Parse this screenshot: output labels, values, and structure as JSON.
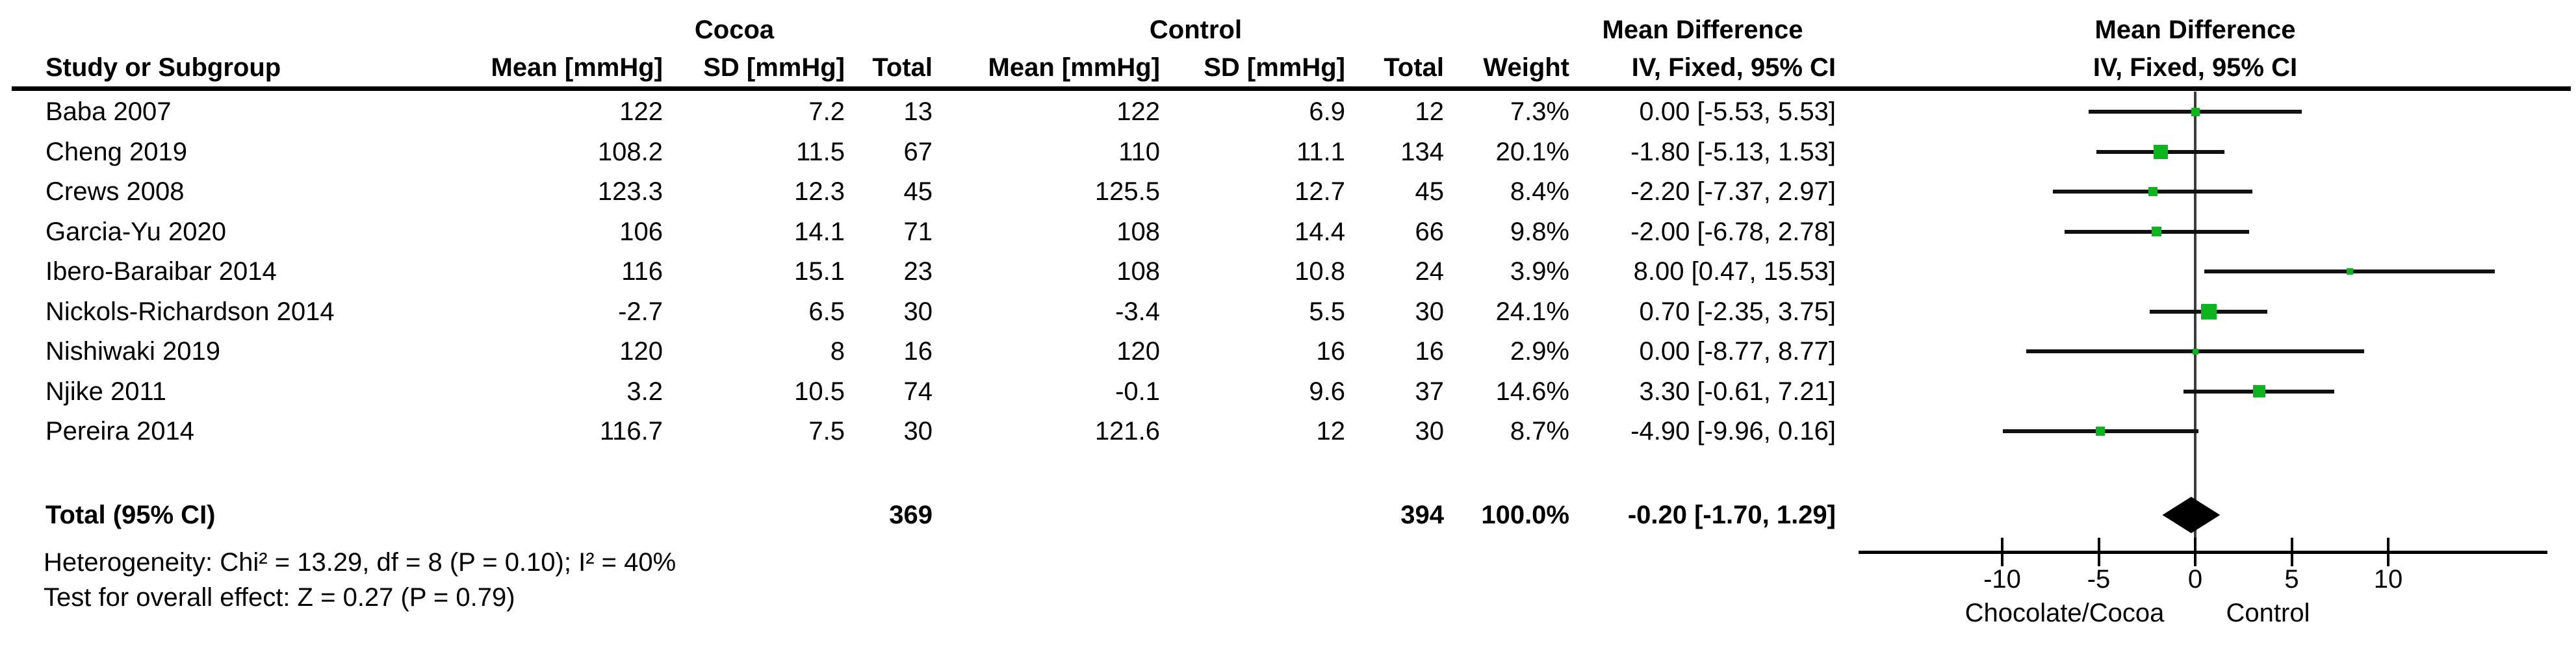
{
  "chart_data": {
    "type": "scatter",
    "subtype": "forest-plot-fixed-effect-mean-difference",
    "groups": {
      "g1": "Cocoa",
      "g2": "Control"
    },
    "columns": {
      "study": "Study or Subgroup",
      "mean": "Mean [mmHg]",
      "sd": "SD [mmHg]",
      "total": "Total",
      "weight": "Weight",
      "ci": "IV, Fixed, 95% CI"
    },
    "md_header": "Mean Difference",
    "studies": [
      {
        "name": "Baba 2007",
        "cocoa": {
          "mean": "122",
          "sd": "7.2",
          "total": "13"
        },
        "control": {
          "mean": "122",
          "sd": "6.9",
          "total": "12"
        },
        "weight": "7.3%",
        "weight_pct": 7.3,
        "ci_label": "0.00 [-5.53, 5.53]",
        "md": 0.0,
        "ci_low": -5.53,
        "ci_high": 5.53
      },
      {
        "name": "Cheng 2019",
        "cocoa": {
          "mean": "108.2",
          "sd": "11.5",
          "total": "67"
        },
        "control": {
          "mean": "110",
          "sd": "11.1",
          "total": "134"
        },
        "weight": "20.1%",
        "weight_pct": 20.1,
        "ci_label": "-1.80 [-5.13, 1.53]",
        "md": -1.8,
        "ci_low": -5.13,
        "ci_high": 1.53
      },
      {
        "name": "Crews 2008",
        "cocoa": {
          "mean": "123.3",
          "sd": "12.3",
          "total": "45"
        },
        "control": {
          "mean": "125.5",
          "sd": "12.7",
          "total": "45"
        },
        "weight": "8.4%",
        "weight_pct": 8.4,
        "ci_label": "-2.20 [-7.37, 2.97]",
        "md": -2.2,
        "ci_low": -7.37,
        "ci_high": 2.97
      },
      {
        "name": "Garcia-Yu 2020",
        "cocoa": {
          "mean": "106",
          "sd": "14.1",
          "total": "71"
        },
        "control": {
          "mean": "108",
          "sd": "14.4",
          "total": "66"
        },
        "weight": "9.8%",
        "weight_pct": 9.8,
        "ci_label": "-2.00 [-6.78, 2.78]",
        "md": -2.0,
        "ci_low": -6.78,
        "ci_high": 2.78
      },
      {
        "name": "Ibero-Baraibar 2014",
        "cocoa": {
          "mean": "116",
          "sd": "15.1",
          "total": "23"
        },
        "control": {
          "mean": "108",
          "sd": "10.8",
          "total": "24"
        },
        "weight": "3.9%",
        "weight_pct": 3.9,
        "ci_label": "8.00 [0.47, 15.53]",
        "md": 8.0,
        "ci_low": 0.47,
        "ci_high": 15.53
      },
      {
        "name": "Nickols-Richardson 2014",
        "cocoa": {
          "mean": "-2.7",
          "sd": "6.5",
          "total": "30"
        },
        "control": {
          "mean": "-3.4",
          "sd": "5.5",
          "total": "30"
        },
        "weight": "24.1%",
        "weight_pct": 24.1,
        "ci_label": "0.70 [-2.35, 3.75]",
        "md": 0.7,
        "ci_low": -2.35,
        "ci_high": 3.75
      },
      {
        "name": "Nishiwaki 2019",
        "cocoa": {
          "mean": "120",
          "sd": "8",
          "total": "16"
        },
        "control": {
          "mean": "120",
          "sd": "16",
          "total": "16"
        },
        "weight": "2.9%",
        "weight_pct": 2.9,
        "ci_label": "0.00 [-8.77, 8.77]",
        "md": 0.0,
        "ci_low": -8.77,
        "ci_high": 8.77
      },
      {
        "name": "Njike 2011",
        "cocoa": {
          "mean": "3.2",
          "sd": "10.5",
          "total": "74"
        },
        "control": {
          "mean": "-0.1",
          "sd": "9.6",
          "total": "37"
        },
        "weight": "14.6%",
        "weight_pct": 14.6,
        "ci_label": "3.30 [-0.61, 7.21]",
        "md": 3.3,
        "ci_low": -0.61,
        "ci_high": 7.21
      },
      {
        "name": "Pereira 2014",
        "cocoa": {
          "mean": "116.7",
          "sd": "7.5",
          "total": "30"
        },
        "control": {
          "mean": "121.6",
          "sd": "12",
          "total": "30"
        },
        "weight": "8.7%",
        "weight_pct": 8.7,
        "ci_label": "-4.90 [-9.96, 0.16]",
        "md": -4.9,
        "ci_low": -9.96,
        "ci_high": 0.16
      }
    ],
    "total": {
      "label": "Total (95% CI)",
      "cocoa_total": "369",
      "control_total": "394",
      "weight": "100.0%",
      "ci_label": "-0.20 [-1.70, 1.29]",
      "md": -0.2,
      "ci_low": -1.7,
      "ci_high": 1.29
    },
    "footer": {
      "heterogeneity": "Heterogeneity: Chi² = 13.29, df = 8 (P = 0.10); I² = 40%",
      "overall_effect": "Test for overall effect: Z = 0.27 (P = 0.79)"
    },
    "axis": {
      "ticks": [
        {
          "v": -10,
          "label": "-10"
        },
        {
          "v": -5,
          "label": "-5"
        },
        {
          "v": 0,
          "label": "0"
        },
        {
          "v": 5,
          "label": "5"
        },
        {
          "v": 10,
          "label": "10"
        }
      ],
      "xlim": [
        -17.4,
        18.2
      ],
      "left_label": "Chocolate/Cocoa",
      "right_label": "Control",
      "grid": false
    },
    "marker_color": "#0cb41e",
    "diamond_color": "#000000"
  }
}
